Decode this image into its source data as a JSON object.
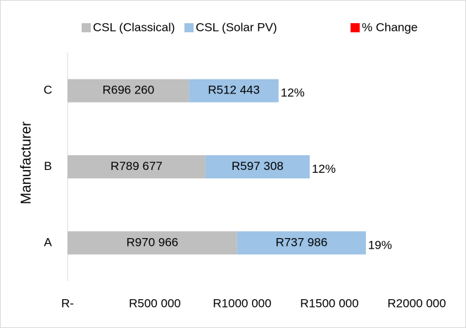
{
  "chart_data": {
    "type": "bar",
    "orientation": "horizontal",
    "stacked": true,
    "y_label": "Manufacturer",
    "categories": [
      "A",
      "B",
      "C"
    ],
    "series": [
      {
        "name": "CSL (Classical)",
        "color": "#bfbfbf",
        "values": [
          970966,
          789677,
          696260
        ],
        "value_labels": [
          "R970 966",
          "R789 677",
          "R696 260"
        ]
      },
      {
        "name": "CSL (Solar PV)",
        "color": "#9dc3e6",
        "values": [
          737986,
          597308,
          512443
        ],
        "value_labels": [
          "R737 986",
          "R597 308",
          "R512 443"
        ]
      },
      {
        "name": "% Change",
        "color": "#ff0000",
        "values": [
          19,
          12,
          12
        ],
        "value_labels": [
          "19%",
          "12%",
          "12%"
        ]
      }
    ],
    "xlim": [
      0,
      2000000
    ],
    "xticks": [
      {
        "value": 0,
        "label": "R-"
      },
      {
        "value": 500000,
        "label": "R500 000"
      },
      {
        "value": 1000000,
        "label": "R1000 000"
      },
      {
        "value": 1500000,
        "label": "R1500 000"
      },
      {
        "value": 2000000,
        "label": "R2000 000"
      }
    ],
    "grid": false,
    "legend": "top"
  }
}
